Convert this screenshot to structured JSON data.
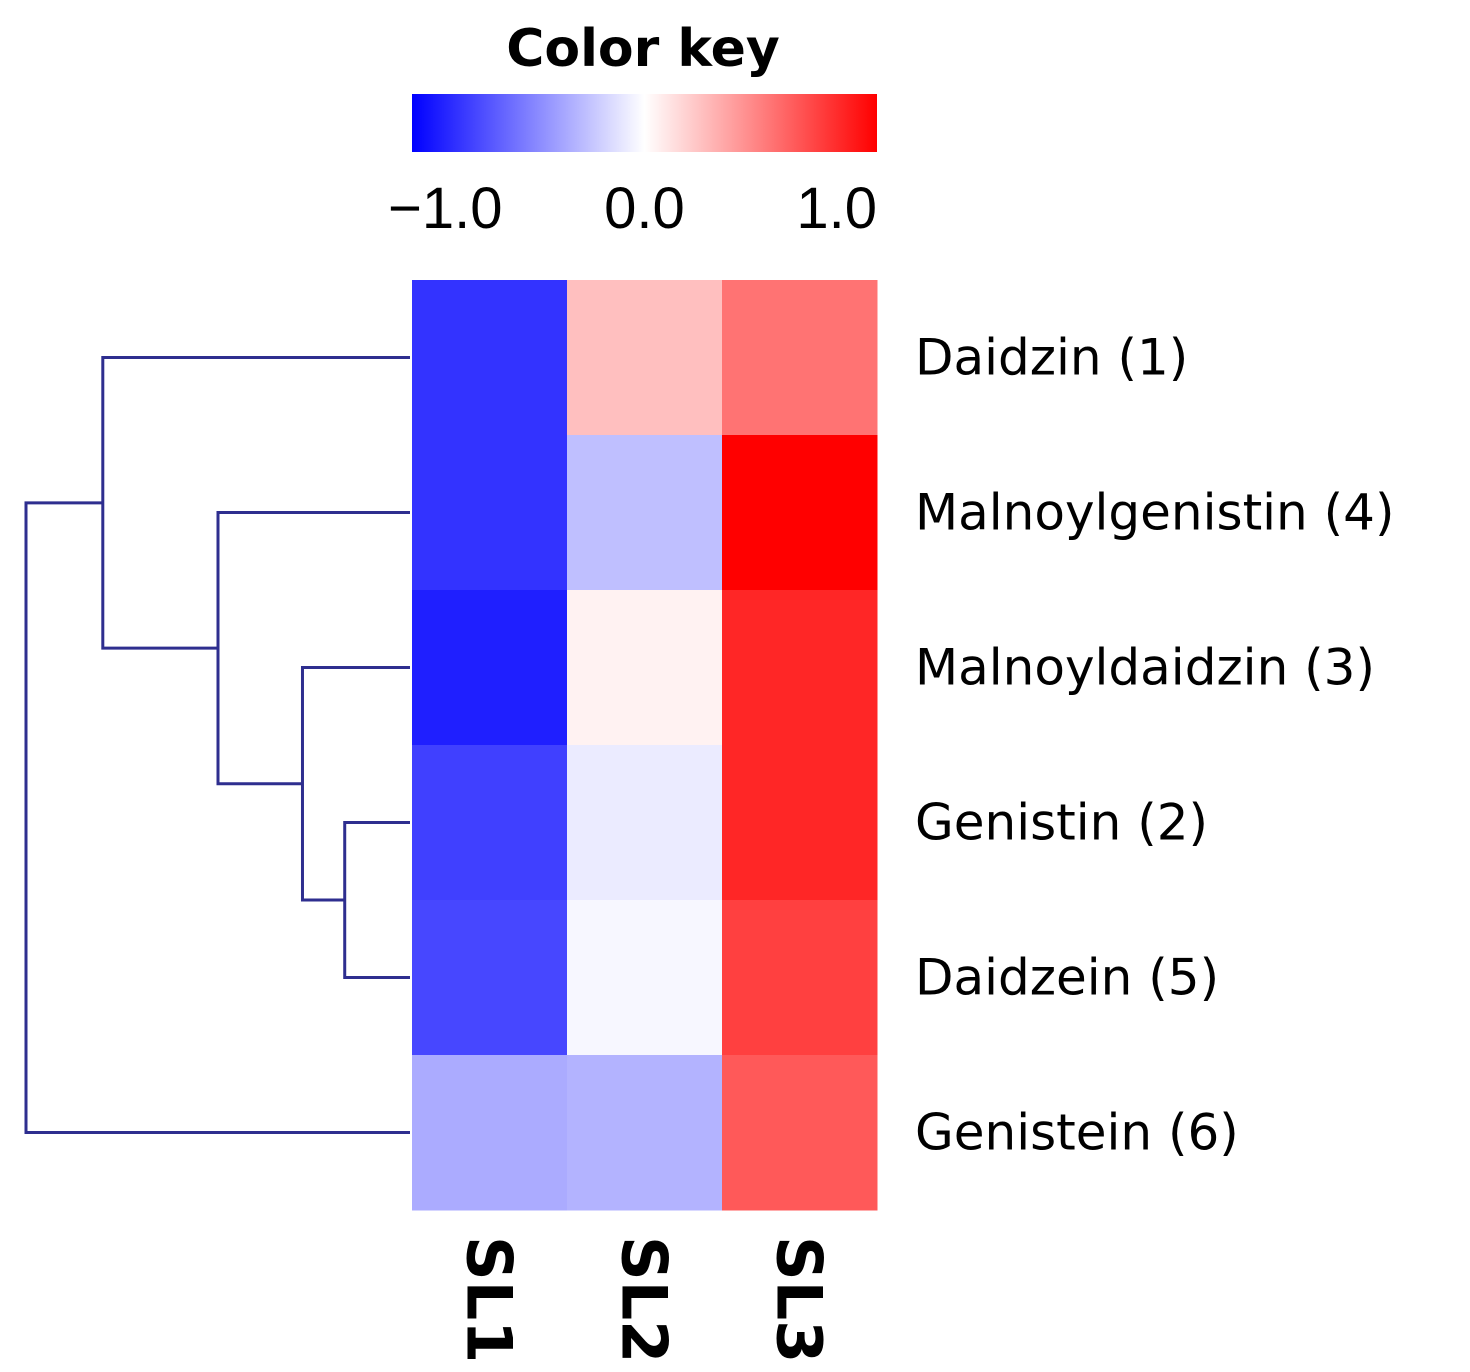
{
  "chart_data": {
    "type": "heatmap",
    "title": "Color key",
    "color_scale": {
      "min": -1.0,
      "max": 1.0,
      "low_color": "#0000ff",
      "mid_color": "#ffffff",
      "high_color": "#ff0000",
      "ticks": [
        {
          "value": -1.0,
          "label": "−1.0"
        },
        {
          "value": 0.0,
          "label": "0.0"
        },
        {
          "value": 1.0,
          "label": "1.0"
        }
      ]
    },
    "rows": [
      "Daidzin (1)",
      "Malnoylgenistin (4)",
      "Malnoyldaidzin (3)",
      "Genistin (2)",
      "Daidzein (5)",
      "Genistein (6)"
    ],
    "columns": [
      "SL1",
      "SL2",
      "SL3"
    ],
    "values": [
      [
        -0.8,
        0.25,
        0.55
      ],
      [
        -0.8,
        -0.25,
        1.0
      ],
      [
        -0.88,
        0.05,
        0.85
      ],
      [
        -0.75,
        -0.08,
        0.85
      ],
      [
        -0.72,
        -0.03,
        0.75
      ],
      [
        -0.33,
        -0.3,
        0.65
      ]
    ],
    "dendrogram": {
      "side": "left",
      "line_color": "#2e2e8f",
      "merges": [
        {
          "left": "Genistin (2)",
          "right": "Daidzein (5)",
          "height": 0.17
        },
        {
          "left": "Malnoyldaidzin (3)",
          "right": "Genistin (2) + Daidzein (5)",
          "height": 0.28
        },
        {
          "left": "Malnoylgenistin (4)",
          "right": "Malnoyldaidzin (3) + Genistin (2) + Daidzein (5)",
          "height": 0.5
        },
        {
          "left": "Daidzin (1)",
          "right": "Malnoylgenistin (4) + Malnoyldaidzin (3) + Genistin (2) + Daidzein (5)",
          "height": 0.8
        },
        {
          "left": "Daidzin (1) + Malnoylgenistin (4) + Malnoyldaidzin (3) + Genistin (2) + Daidzein (5)",
          "right": "Genistein (6)",
          "height": 1.0
        }
      ]
    }
  }
}
